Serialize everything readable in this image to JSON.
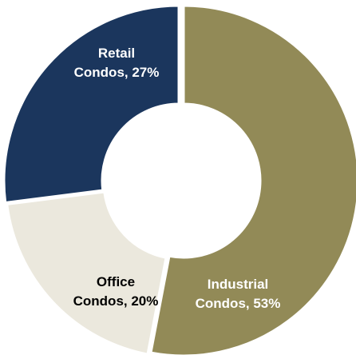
{
  "chart_data": {
    "type": "pie",
    "style": "donut",
    "slices": [
      {
        "name": "Industrial",
        "label_line1": "Industrial",
        "label_line2": "Condos, 53%",
        "value": 53,
        "color": "#928a57",
        "label_color": "#ffffff"
      },
      {
        "name": "Office",
        "label_line1": "Office",
        "label_line2": "Condos, 20%",
        "value": 20,
        "color": "#ebe8dd",
        "label_color": "#000000"
      },
      {
        "name": "Retail",
        "label_line1": "Retail",
        "label_line2": "Condos, 27%",
        "value": 27,
        "color": "#1b365d",
        "label_color": "#ffffff"
      }
    ]
  }
}
